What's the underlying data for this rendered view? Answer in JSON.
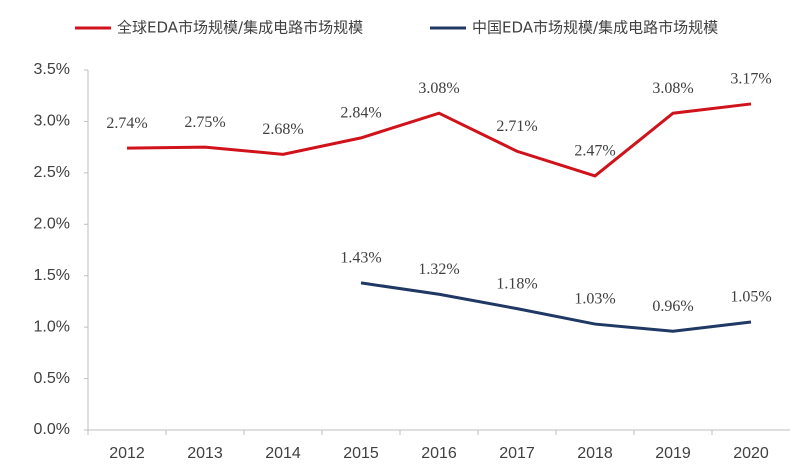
{
  "chart_data": {
    "type": "line",
    "categories": [
      "2012",
      "2013",
      "2014",
      "2015",
      "2016",
      "2017",
      "2018",
      "2019",
      "2020"
    ],
    "series": [
      {
        "name": "全球EDA市场规模/集成电路市场规模",
        "color": "#d0121b",
        "values": [
          2.74,
          2.75,
          2.68,
          2.84,
          3.08,
          2.71,
          2.47,
          3.08,
          3.17
        ],
        "value_labels": [
          "2.74%",
          "2.75%",
          "2.68%",
          "2.84%",
          "3.08%",
          "2.71%",
          "2.47%",
          "3.08%",
          "3.17%"
        ]
      },
      {
        "name": "中国EDA市场规模/集成电路市场规模",
        "color": "#1f3864",
        "values": [
          null,
          null,
          null,
          1.43,
          1.32,
          1.18,
          1.03,
          0.96,
          1.05
        ],
        "value_labels": [
          null,
          null,
          null,
          "1.43%",
          "1.32%",
          "1.18%",
          "1.03%",
          "0.96%",
          "1.05%"
        ]
      }
    ],
    "ylim": [
      0,
      3.5
    ],
    "yticks": [
      {
        "value": 0,
        "label": "0.0%"
      },
      {
        "value": 0.5,
        "label": "0.5%"
      },
      {
        "value": 1,
        "label": "1.0%"
      },
      {
        "value": 1.5,
        "label": "1.5%"
      },
      {
        "value": 2,
        "label": "2.0%"
      },
      {
        "value": 2.5,
        "label": "2.5%"
      },
      {
        "value": 3,
        "label": "3.0%"
      },
      {
        "value": 3.5,
        "label": "3.5%"
      }
    ],
    "legend": "top"
  }
}
